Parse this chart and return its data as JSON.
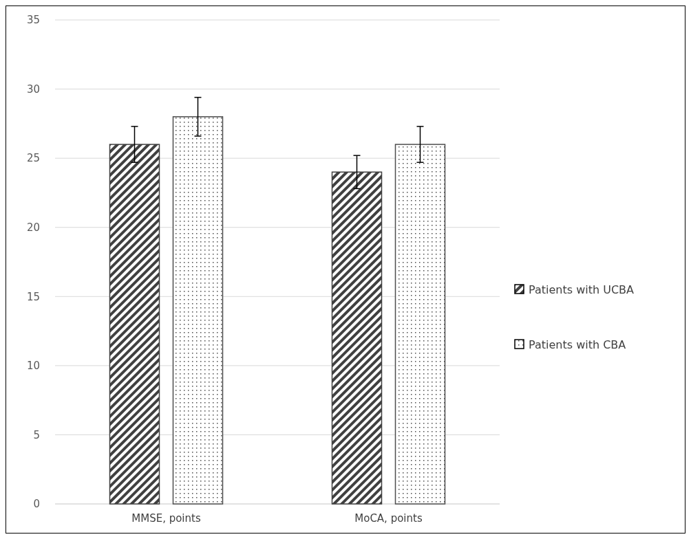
{
  "chart_data": {
    "type": "bar",
    "categories": [
      "MMSE, points",
      "MoCA, points"
    ],
    "series": [
      {
        "name": "Patients with UCBA",
        "color": "#404040",
        "values": [
          26,
          24
        ],
        "errors": [
          1.3,
          1.2
        ]
      },
      {
        "name": "Patients with CBA",
        "color": "#4d4d4d",
        "values": [
          28,
          26
        ],
        "errors": [
          1.4,
          1.3
        ]
      }
    ],
    "ylim": [
      0,
      35
    ],
    "yticks": [
      0,
      5,
      10,
      15,
      20,
      25,
      30,
      35
    ],
    "grid": "y",
    "legend": "right"
  }
}
